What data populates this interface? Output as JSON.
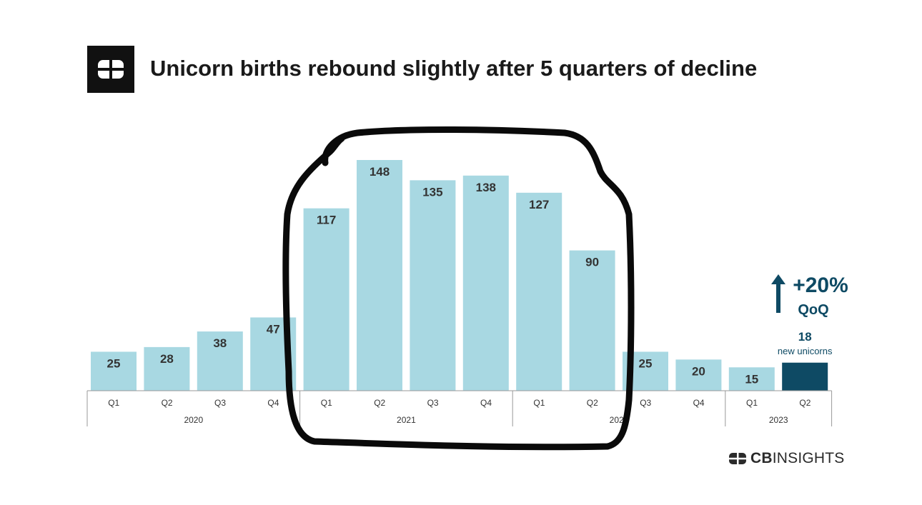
{
  "header": {
    "title": "Unicorn births rebound slightly after 5 quarters of decline"
  },
  "colors": {
    "bar": "#a8d8e2",
    "bar_highlight": "#0e4a64",
    "annotation": "#0e4a64",
    "axis": "#999999",
    "label": "#333333"
  },
  "chart_data": {
    "type": "bar",
    "title": "Unicorn births rebound slightly after 5 quarters of decline",
    "categories": [
      "Q1",
      "Q2",
      "Q3",
      "Q4",
      "Q1",
      "Q2",
      "Q3",
      "Q4",
      "Q1",
      "Q2",
      "Q3",
      "Q4",
      "Q1",
      "Q2"
    ],
    "years": [
      {
        "label": "2020",
        "span": 4
      },
      {
        "label": "2021",
        "span": 4
      },
      {
        "label": "2022",
        "span": 4
      },
      {
        "label": "2023",
        "span": 2
      }
    ],
    "values": [
      25,
      28,
      38,
      47,
      117,
      148,
      135,
      138,
      127,
      90,
      25,
      20,
      15,
      18
    ],
    "highlight_index": 13,
    "ylim": [
      0,
      160
    ],
    "grid": false,
    "annotation": {
      "change": "+20%",
      "change_label": "QoQ",
      "count": "18",
      "count_label": "new unicorns"
    }
  },
  "brand": {
    "name_bold": "CB",
    "name_rest": "INSIGHTS"
  }
}
